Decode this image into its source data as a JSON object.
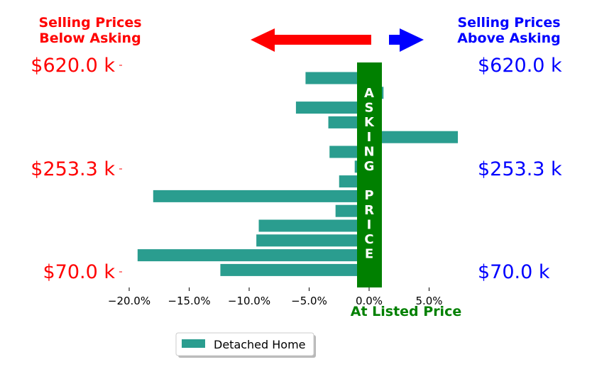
{
  "header": {
    "left_line1": "Selling Prices",
    "left_line2": "Below Asking",
    "right_line1": "Selling Prices",
    "right_line2": "Above Asking"
  },
  "band": {
    "letters": [
      "A",
      "S",
      "K",
      "I",
      "N",
      "G",
      "",
      "P",
      "R",
      "I",
      "C",
      "E"
    ],
    "bottom_label": "At Listed Price"
  },
  "legend": {
    "label": "Detached Home"
  },
  "colors": {
    "bar": "#2a9d8f",
    "band": "#008000",
    "left_text": "#ff0000",
    "right_text": "#0000ff",
    "left_arrow": "#ff0000",
    "right_arrow": "#0000ff"
  },
  "chart_data": {
    "type": "bar",
    "orientation": "horizontal",
    "series": [
      {
        "name": "Detached Home",
        "values": [
          -5.3,
          1.2,
          -6.1,
          -3.4,
          7.4,
          -3.3,
          -1.2,
          -2.5,
          -18.0,
          -2.8,
          -9.2,
          -9.4,
          -19.3,
          -12.4
        ]
      }
    ],
    "xlim": [
      -20.0,
      7.5
    ],
    "xticks": [
      -20.0,
      -15.0,
      -10.0,
      -5.0,
      0.0,
      5.0
    ],
    "xtick_labels": [
      "−20.0%",
      "−15.0%",
      "−10.0%",
      "−5.0%",
      "0.0%",
      "5.0%"
    ],
    "y_tick_labels_left": [
      "$620.0 k",
      "$253.3 k",
      "$70.0 k"
    ],
    "y_tick_labels_right": [
      "$620.0 k",
      "$253.3 k",
      "$70.0 k"
    ],
    "legend_position": "bottom-center"
  }
}
